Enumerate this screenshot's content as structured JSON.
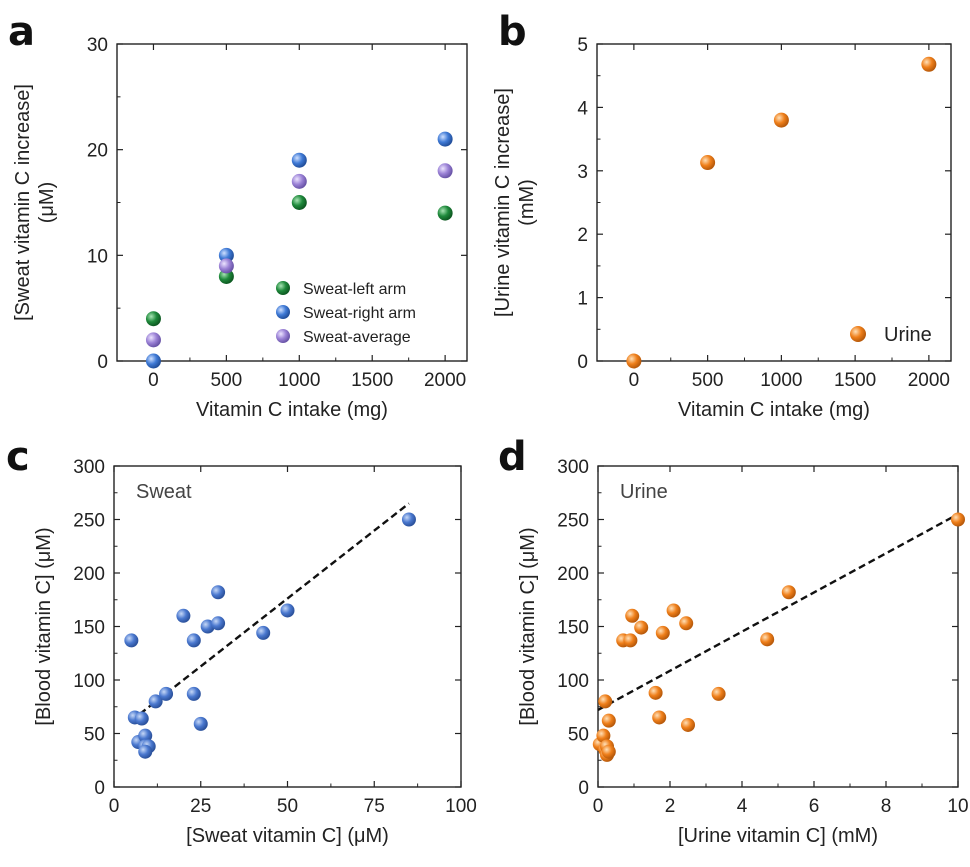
{
  "chart_data": [
    {
      "panel": "a",
      "type": "scatter",
      "xlabel": "Vitamin C intake (mg)",
      "ylabel_line1": "[Sweat vitamin C increase]",
      "ylabel_line2": "(μM)",
      "xlim": [
        -250,
        2150
      ],
      "ylim": [
        0,
        30
      ],
      "xticks": [
        0,
        500,
        1000,
        1500,
        2000
      ],
      "yticks": [
        0,
        10,
        20,
        30
      ],
      "legend_position": "bottom-right",
      "series": [
        {
          "name": "Sweat-left arm",
          "color": "#1f8a3c",
          "x": [
            0,
            500,
            1000,
            2000
          ],
          "y": [
            4,
            8,
            15,
            14
          ]
        },
        {
          "name": "Sweat-right arm",
          "color": "#3f7ad6",
          "x": [
            0,
            500,
            1000,
            2000
          ],
          "y": [
            0,
            10,
            19,
            21
          ]
        },
        {
          "name": "Sweat-average",
          "color": "#9b82d6",
          "x": [
            0,
            500,
            1000,
            2000
          ],
          "y": [
            2,
            9,
            17,
            18
          ]
        }
      ]
    },
    {
      "panel": "b",
      "type": "scatter",
      "xlabel": "Vitamin C intake (mg)",
      "ylabel_line1": "[Urine vitamin C increase]",
      "ylabel_line2": "(mM)",
      "xlim": [
        -250,
        2150
      ],
      "ylim": [
        0,
        5
      ],
      "xticks": [
        0,
        500,
        1000,
        1500,
        2000
      ],
      "yticks": [
        0,
        1,
        2,
        3,
        4,
        5
      ],
      "legend_position": "bottom-right",
      "series": [
        {
          "name": "Urine",
          "color": "#ef7f1a",
          "x": [
            0,
            500,
            1000,
            2000
          ],
          "y": [
            0,
            3.13,
            3.8,
            4.68
          ]
        }
      ]
    },
    {
      "panel": "c",
      "type": "scatter",
      "title": "Sweat",
      "xlabel": "[Sweat vitamin C] (μM)",
      "ylabel": "[Blood vitamin C] (μM)",
      "xlim": [
        0,
        100
      ],
      "ylim": [
        0,
        300
      ],
      "xticks": [
        0,
        25,
        50,
        75,
        100
      ],
      "yticks": [
        0,
        50,
        100,
        150,
        200,
        250,
        300
      ],
      "series": [
        {
          "color": "#4a78cf",
          "x": [
            5,
            6,
            8,
            7,
            9,
            9,
            10,
            9,
            12,
            15,
            20,
            23,
            23,
            25,
            27,
            30,
            30,
            43,
            50,
            85
          ],
          "y": [
            137,
            65,
            64,
            42,
            48,
            38,
            38,
            33,
            80,
            87,
            160,
            137,
            87,
            59,
            150,
            153,
            182,
            144,
            165,
            250
          ]
        }
      ],
      "fit_line": {
        "x": [
          5,
          85
        ],
        "y": [
          62,
          265
        ]
      }
    },
    {
      "panel": "d",
      "type": "scatter",
      "title": "Urine",
      "xlabel": "[Urine vitamin C] (mM)",
      "ylabel": "[Blood vitamin C] (μM)",
      "xlim": [
        0,
        10
      ],
      "ylim": [
        0,
        300
      ],
      "xticks": [
        0,
        2,
        4,
        6,
        8,
        10
      ],
      "yticks": [
        0,
        50,
        100,
        150,
        200,
        250,
        300
      ],
      "series": [
        {
          "color": "#ef7f1a",
          "x": [
            0.05,
            0.15,
            0.2,
            0.2,
            0.25,
            0.25,
            0.3,
            0.3,
            0.7,
            0.9,
            0.95,
            1.2,
            1.6,
            1.7,
            1.8,
            2.1,
            2.45,
            2.5,
            3.35,
            4.7,
            5.3,
            10
          ],
          "y": [
            40,
            48,
            35,
            80,
            30,
            38,
            62,
            33,
            137,
            137,
            160,
            149,
            88,
            65,
            144,
            165,
            153,
            58,
            87,
            138,
            182,
            250
          ]
        }
      ],
      "fit_line": {
        "x": [
          0,
          10
        ],
        "y": [
          72,
          255
        ]
      }
    }
  ]
}
